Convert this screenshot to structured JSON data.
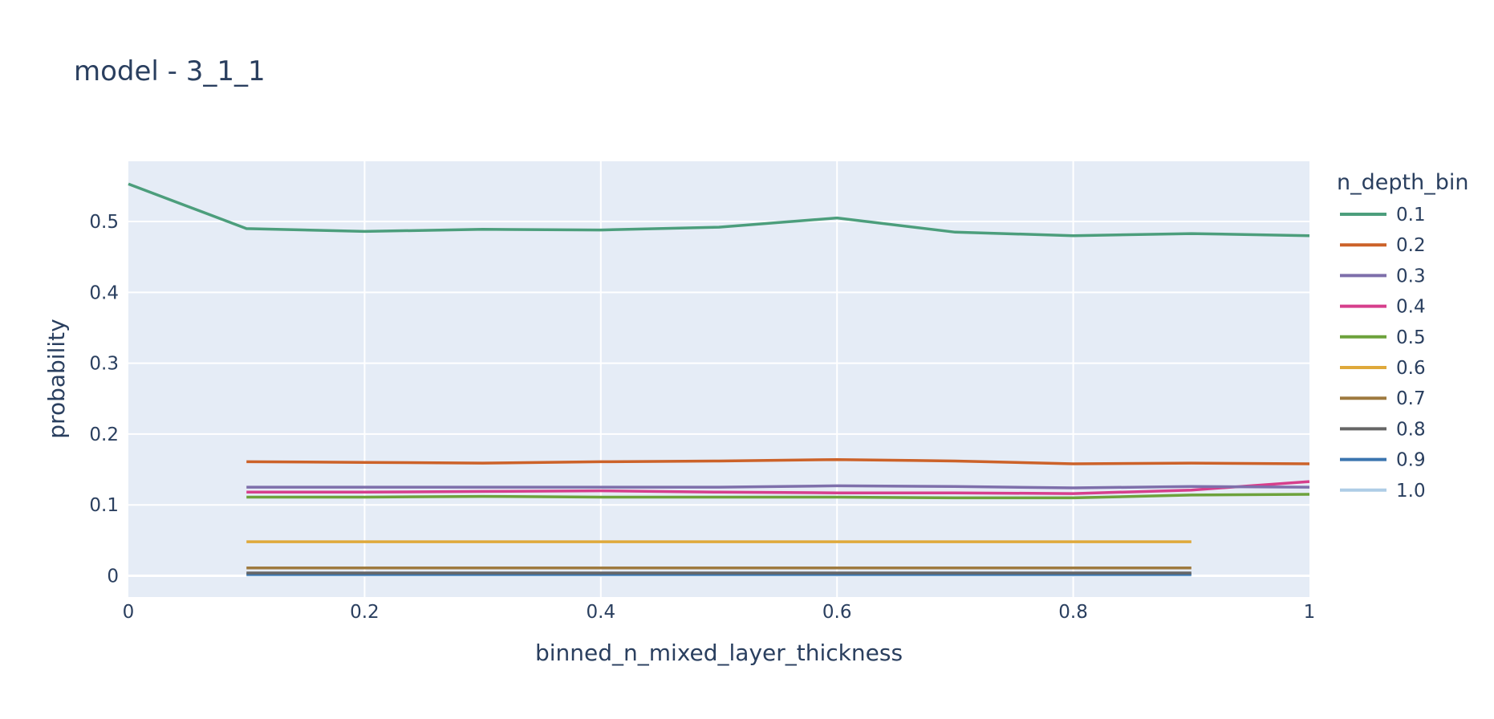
{
  "chart_data": {
    "type": "line",
    "title": "model - 3_1_1",
    "xlabel": "binned_n_mixed_layer_thickness",
    "ylabel": "probability",
    "xlim": [
      0,
      1
    ],
    "ylim": [
      -0.03,
      0.585
    ],
    "xticks": [
      0,
      0.2,
      0.4,
      0.6,
      0.8,
      1
    ],
    "xtick_labels": [
      "0",
      "0.2",
      "0.4",
      "0.6",
      "0.8",
      "1"
    ],
    "yticks": [
      0,
      0.1,
      0.2,
      0.3,
      0.4,
      0.5
    ],
    "ytick_labels": [
      "0",
      "0.1",
      "0.2",
      "0.3",
      "0.4",
      "0.5"
    ],
    "grid": true,
    "legend_title": "n_depth_bin",
    "legend_position": "right",
    "series": [
      {
        "name": "0.1",
        "color": "#4c9e7c",
        "x": [
          0,
          0.1,
          0.2,
          0.3,
          0.4,
          0.5,
          0.6,
          0.7,
          0.8,
          0.9,
          1.0
        ],
        "y": [
          0.553,
          0.49,
          0.486,
          0.489,
          0.488,
          0.492,
          0.505,
          0.485,
          0.48,
          0.483,
          0.48
        ]
      },
      {
        "name": "0.2",
        "color": "#cc6229",
        "x": [
          0.1,
          0.2,
          0.3,
          0.4,
          0.5,
          0.6,
          0.7,
          0.8,
          0.9,
          1.0
        ],
        "y": [
          0.161,
          0.16,
          0.159,
          0.161,
          0.162,
          0.164,
          0.162,
          0.158,
          0.159,
          0.158
        ]
      },
      {
        "name": "0.3",
        "color": "#7e6fab",
        "x": [
          0.1,
          0.2,
          0.3,
          0.4,
          0.5,
          0.6,
          0.7,
          0.8,
          0.9,
          1.0
        ],
        "y": [
          0.125,
          0.125,
          0.125,
          0.125,
          0.125,
          0.127,
          0.126,
          0.124,
          0.126,
          0.125
        ]
      },
      {
        "name": "0.4",
        "color": "#d63f8c",
        "x": [
          0.1,
          0.2,
          0.3,
          0.4,
          0.5,
          0.6,
          0.7,
          0.8,
          0.9,
          1.0
        ],
        "y": [
          0.118,
          0.118,
          0.119,
          0.12,
          0.118,
          0.117,
          0.117,
          0.116,
          0.121,
          0.133
        ]
      },
      {
        "name": "0.5",
        "color": "#6da23c",
        "x": [
          0.1,
          0.2,
          0.3,
          0.4,
          0.5,
          0.6,
          0.7,
          0.8,
          0.9,
          1.0
        ],
        "y": [
          0.111,
          0.111,
          0.112,
          0.111,
          0.111,
          0.111,
          0.11,
          0.11,
          0.114,
          0.115
        ]
      },
      {
        "name": "0.6",
        "color": "#dfa93b",
        "x": [
          0.1,
          0.2,
          0.3,
          0.4,
          0.5,
          0.6,
          0.7,
          0.8,
          0.9
        ],
        "y": [
          0.048,
          0.048,
          0.048,
          0.048,
          0.048,
          0.048,
          0.048,
          0.048,
          0.048
        ]
      },
      {
        "name": "0.7",
        "color": "#9e7a3f",
        "x": [
          0.1,
          0.2,
          0.3,
          0.4,
          0.5,
          0.6,
          0.7,
          0.8,
          0.9
        ],
        "y": [
          0.011,
          0.011,
          0.011,
          0.011,
          0.011,
          0.011,
          0.011,
          0.011,
          0.011
        ]
      },
      {
        "name": "0.8",
        "color": "#666666",
        "x": [
          0.1,
          0.2,
          0.3,
          0.4,
          0.5,
          0.6,
          0.7,
          0.8,
          0.9
        ],
        "y": [
          0.004,
          0.004,
          0.004,
          0.004,
          0.004,
          0.004,
          0.004,
          0.004,
          0.004
        ]
      },
      {
        "name": "0.9",
        "color": "#3b75af",
        "x": [
          0.1,
          0.2,
          0.3,
          0.4,
          0.5,
          0.6,
          0.7,
          0.8,
          0.9
        ],
        "y": [
          0.002,
          0.002,
          0.002,
          0.002,
          0.002,
          0.002,
          0.002,
          0.002,
          0.002
        ]
      },
      {
        "name": "1.0",
        "color": "#aecde6",
        "x": [
          0.1,
          0.2,
          0.3,
          0.4,
          0.5,
          0.6,
          0.7,
          0.8,
          0.9
        ],
        "y": [
          0.001,
          0.001,
          0.001,
          0.001,
          0.001,
          0.001,
          0.001,
          0.001,
          0.001
        ]
      }
    ]
  }
}
